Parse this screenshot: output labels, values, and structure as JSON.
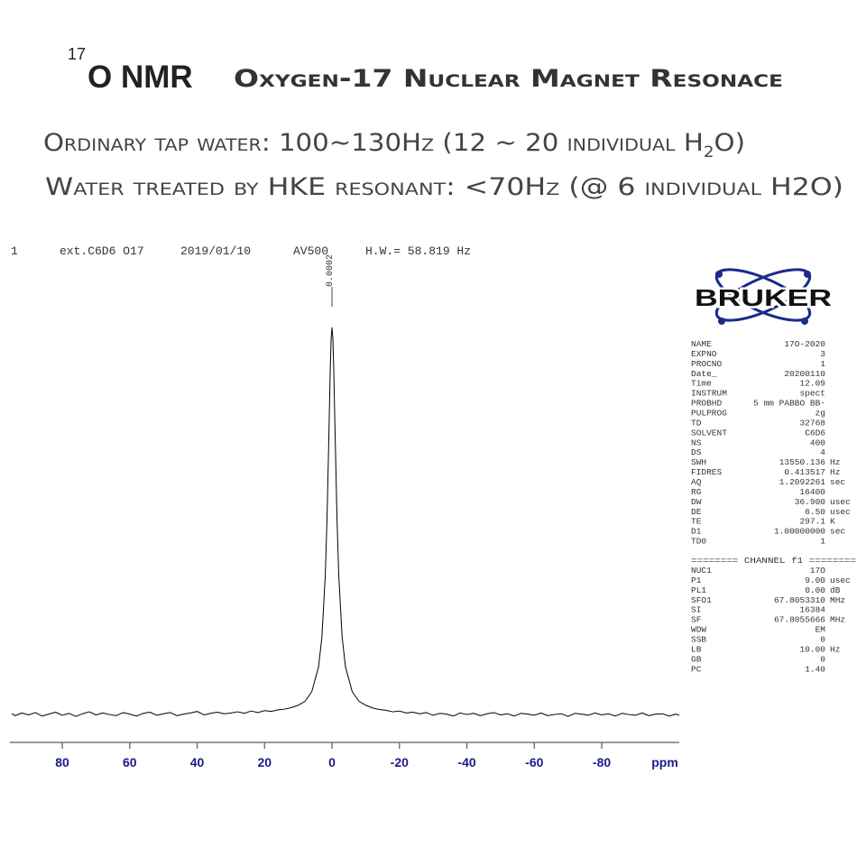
{
  "header": {
    "superscript": "17",
    "title": "O NMR",
    "subtitle": "Oxygen-17 Nuclear Magnet Resonace",
    "line1": [
      "Ordinary tap water: 100~130Hz (12 ~ 20 individual H",
      "2",
      "O)"
    ],
    "line2": "Water treated by HKE resonant: <70Hz (@ 6 individual H2O)"
  },
  "chart_data": {
    "type": "line",
    "annotations": [
      "1",
      "ext.C6D6 O17",
      "2019/01/10",
      "AV500",
      "H.W.= 58.819 Hz"
    ],
    "peak_label": "0.0002",
    "x_label": "ppm",
    "color": "#000000",
    "x": [
      95,
      94,
      92,
      90,
      88,
      86,
      84,
      82,
      80,
      78,
      76,
      74,
      72,
      70,
      68,
      66,
      64,
      62,
      60,
      58,
      56,
      54,
      52,
      50,
      48,
      46,
      44,
      42,
      40,
      38,
      36,
      34,
      32,
      30,
      28,
      26,
      24,
      22,
      20,
      18,
      16,
      14,
      12,
      10,
      8,
      6,
      4,
      3,
      2,
      1.5,
      1,
      0.5,
      0.25,
      0,
      -0.25,
      -0.5,
      -1,
      -1.5,
      -2,
      -3,
      -4,
      -6,
      -8,
      -10,
      -12,
      -14,
      -16,
      -18,
      -20,
      -22,
      -24,
      -26,
      -28,
      -30,
      -32,
      -34,
      -36,
      -38,
      -40,
      -42,
      -44,
      -46,
      -48,
      -50,
      -52,
      -54,
      -56,
      -58,
      -60,
      -62,
      -64,
      -66,
      -68,
      -70,
      -72,
      -74,
      -76,
      -78,
      -80,
      -82,
      -84,
      -86,
      -88,
      -90,
      -92,
      -94,
      -96,
      -98,
      -100,
      -102,
      -103
    ],
    "values": [
      0.2,
      -0.3,
      0.4,
      -0.1,
      0.5,
      -0.4,
      0.1,
      0.6,
      -0.2,
      0.3,
      -0.5,
      0.2,
      0.7,
      -0.1,
      0.4,
      0.0,
      -0.3,
      0.5,
      0.1,
      -0.4,
      0.3,
      0.6,
      -0.2,
      0.2,
      0.5,
      -0.3,
      0.1,
      0.4,
      0.8,
      -0.1,
      0.3,
      0.6,
      0.2,
      0.4,
      0.7,
      0.3,
      0.9,
      0.5,
      1.0,
      0.8,
      1.2,
      1.4,
      1.8,
      2.4,
      3.4,
      5.9,
      12.3,
      20,
      36,
      50,
      69.2,
      90,
      97.3,
      100,
      97.3,
      90,
      69.2,
      50,
      36,
      20,
      12.3,
      5.9,
      3.4,
      2.4,
      1.7,
      1.3,
      1.1,
      0.7,
      0.9,
      0.4,
      0.6,
      0.2,
      0.5,
      -0.2,
      0.3,
      0.1,
      -0.4,
      0.4,
      0.0,
      0.3,
      -0.3,
      0.2,
      0.5,
      -0.1,
      0.2,
      -0.4,
      0.3,
      0.1,
      -0.2,
      0.4,
      -0.3,
      0.0,
      0.2,
      -0.5,
      0.3,
      0.1,
      -0.2,
      0.4,
      -0.1,
      0.2,
      -0.4,
      0.3,
      0.0,
      -0.2,
      0.4,
      -0.3,
      0.1,
      0.2,
      -0.4,
      0.1,
      -0.2
    ],
    "xlim": [
      95,
      -103
    ],
    "xticks": [
      80,
      60,
      40,
      20,
      0,
      -20,
      -40,
      -60,
      -80
    ],
    "ylim": [
      -5,
      115
    ]
  },
  "logo": "BRUKER",
  "parameters": {
    "acquisition": [
      [
        "NAME",
        "17O-2020"
      ],
      [
        "EXPNO",
        "3"
      ],
      [
        "PROCNO",
        "1"
      ],
      [
        "Date_",
        "20200110"
      ],
      [
        "Time",
        "12.09"
      ],
      [
        "INSTRUM",
        "spect"
      ],
      [
        "PROBHD",
        "5 mm PABBO BB-"
      ],
      [
        "PULPROG",
        "zg"
      ],
      [
        "TD",
        "32768"
      ],
      [
        "SOLVENT",
        "C6D6"
      ],
      [
        "NS",
        "400"
      ],
      [
        "DS",
        "4"
      ],
      [
        "SWH",
        "13550.136",
        "Hz"
      ],
      [
        "FIDRES",
        "0.413517",
        "Hz"
      ],
      [
        "AQ",
        "1.2092261",
        "sec"
      ],
      [
        "RG",
        "16400"
      ],
      [
        "DW",
        "36.900",
        "usec"
      ],
      [
        "DE",
        "6.50",
        "usec"
      ],
      [
        "TE",
        "297.1",
        "K"
      ],
      [
        "D1",
        "1.00000000",
        "sec"
      ],
      [
        "TD0",
        "1"
      ]
    ],
    "channel_title": "======== CHANNEL f1 ========",
    "channel": [
      [
        "NUC1",
        "17O"
      ],
      [
        "P1",
        "9.00",
        "usec"
      ],
      [
        "PL1",
        "0.00",
        "dB"
      ],
      [
        "SFO1",
        "67.8053310",
        "MHz"
      ],
      [
        "SI",
        "16384"
      ],
      [
        "SF",
        "67.8055666",
        "MHz"
      ],
      [
        "WDW",
        "EM"
      ],
      [
        "SSB",
        "0"
      ],
      [
        "LB",
        "10.00",
        "Hz"
      ],
      [
        "GB",
        "0"
      ],
      [
        "PC",
        "1.40"
      ]
    ]
  }
}
